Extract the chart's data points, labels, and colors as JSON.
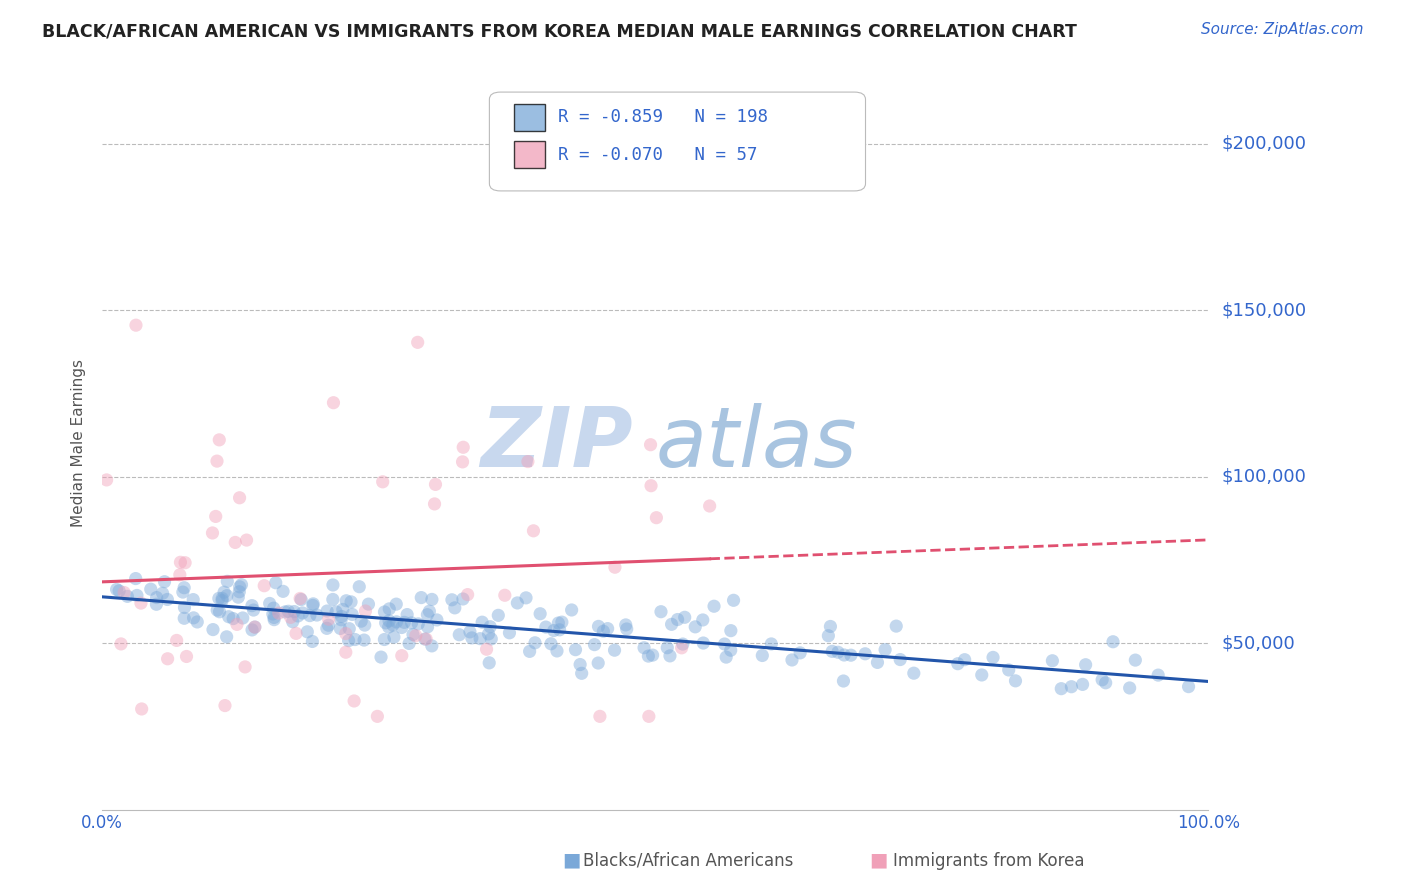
{
  "title": "BLACK/AFRICAN AMERICAN VS IMMIGRANTS FROM KOREA MEDIAN MALE EARNINGS CORRELATION CHART",
  "source": "Source: ZipAtlas.com",
  "ylabel": "Median Male Earnings",
  "xlim": [
    0.0,
    1.0
  ],
  "ylim": [
    0,
    220000
  ],
  "bg_color": "#ffffff",
  "grid_color": "#bbbbbb",
  "watermark_zip": "ZIP",
  "watermark_atlas": "atlas",
  "watermark_color_zip": "#c8d8ee",
  "watermark_color_atlas": "#a8c4e0",
  "blue_color": "#7aa8d8",
  "pink_color": "#f0a0b8",
  "line_blue": "#2255aa",
  "line_pink": "#e05070",
  "legend_R1": "-0.859",
  "legend_N1": "198",
  "legend_R2": "-0.070",
  "legend_N2": "57",
  "label_color": "#3366cc",
  "title_color": "#222222",
  "dot_alpha": 0.45,
  "dot_size": 90,
  "seed": 42
}
